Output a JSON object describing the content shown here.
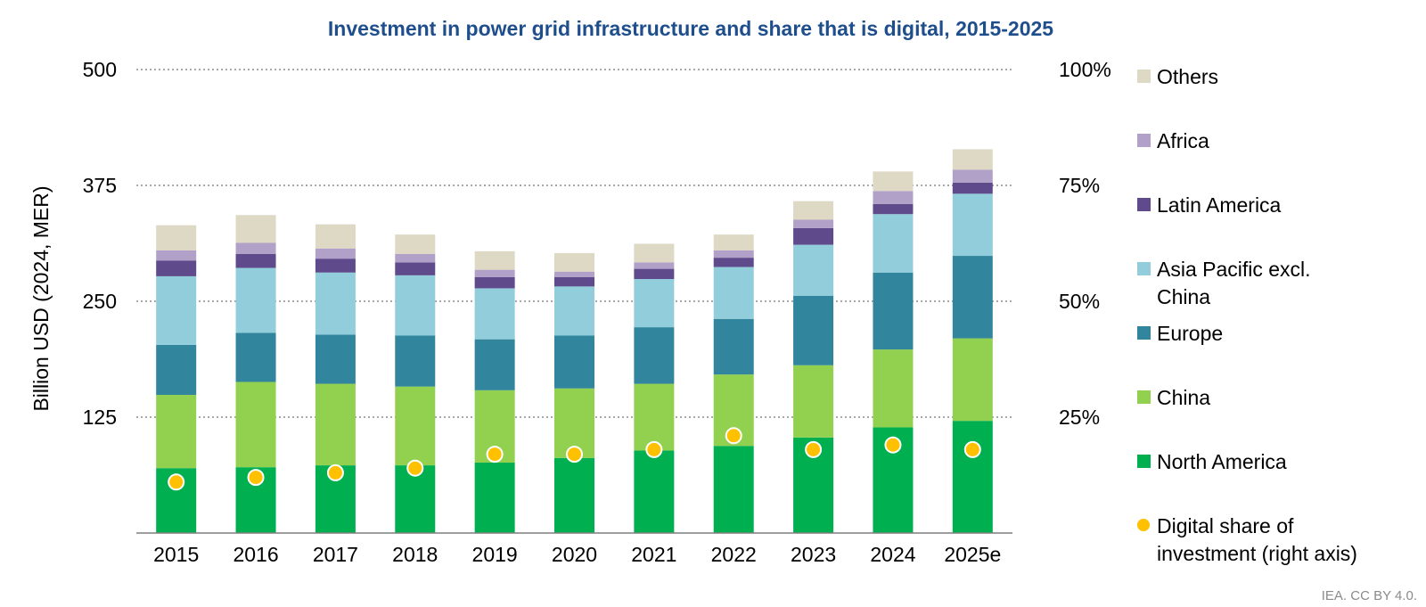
{
  "chart_data": {
    "type": "bar",
    "stacked": true,
    "title": "Investment in power grid infrastructure and share that is digital, 2015-2025",
    "ylabel": "Billion USD (2024, MER)",
    "y2label": "",
    "ylim": [
      0,
      500
    ],
    "y2lim": [
      0,
      100
    ],
    "yticks": [
      "125",
      "250",
      "375",
      "500"
    ],
    "y2ticks": [
      "25%",
      "50%",
      "75%",
      "100%"
    ],
    "grid": true,
    "legend_position": "right",
    "categories": [
      "2015",
      "2016",
      "2017",
      "2018",
      "2019",
      "2020",
      "2021",
      "2022",
      "2023",
      "2024",
      "2025e"
    ],
    "series": [
      {
        "name": "North America",
        "color": "#00b050",
        "values": [
          70,
          71,
          73,
          73,
          76,
          81,
          89,
          94,
          103,
          114,
          121
        ]
      },
      {
        "name": "China",
        "color": "#92d050",
        "values": [
          79,
          92,
          88,
          85,
          78,
          75,
          72,
          77,
          78,
          84,
          89
        ]
      },
      {
        "name": "Europe",
        "color": "#31859c",
        "values": [
          54,
          53,
          53,
          55,
          55,
          57,
          61,
          60,
          75,
          83,
          89
        ]
      },
      {
        "name": "Asia Pacific excl. China",
        "color": "#92cddc",
        "values": [
          74,
          70,
          67,
          65,
          55,
          53,
          52,
          56,
          55,
          63,
          67
        ]
      },
      {
        "name": "Latin America",
        "color": "#5f4b8b",
        "values": [
          17,
          15,
          15,
          14,
          12,
          10,
          11,
          10,
          18,
          11,
          12
        ]
      },
      {
        "name": "Africa",
        "color": "#b1a0c7",
        "values": [
          11,
          12,
          11,
          9,
          8,
          6,
          7,
          8,
          9,
          14,
          14
        ]
      },
      {
        "name": "Others",
        "color": "#ddd9c4",
        "values": [
          27,
          30,
          26,
          21,
          20,
          20,
          20,
          17,
          20,
          21,
          22
        ]
      }
    ],
    "line_series": {
      "name": "Digital share of investment (right axis)",
      "color": "#ffc000",
      "axis": "right",
      "unit": "%",
      "values": [
        11,
        12,
        13,
        14,
        17,
        17,
        18,
        21,
        18,
        19,
        18
      ]
    },
    "legend_lines": [
      [
        "Others"
      ],
      [
        "Africa"
      ],
      [
        "Latin America"
      ],
      [
        "Asia Pacific excl.",
        "China"
      ],
      [
        "Europe"
      ],
      [
        "China"
      ],
      [
        "North America"
      ],
      [
        "Digital share of",
        "investment (right axis)"
      ]
    ]
  },
  "source_note": "IEA. CC BY 4.0."
}
